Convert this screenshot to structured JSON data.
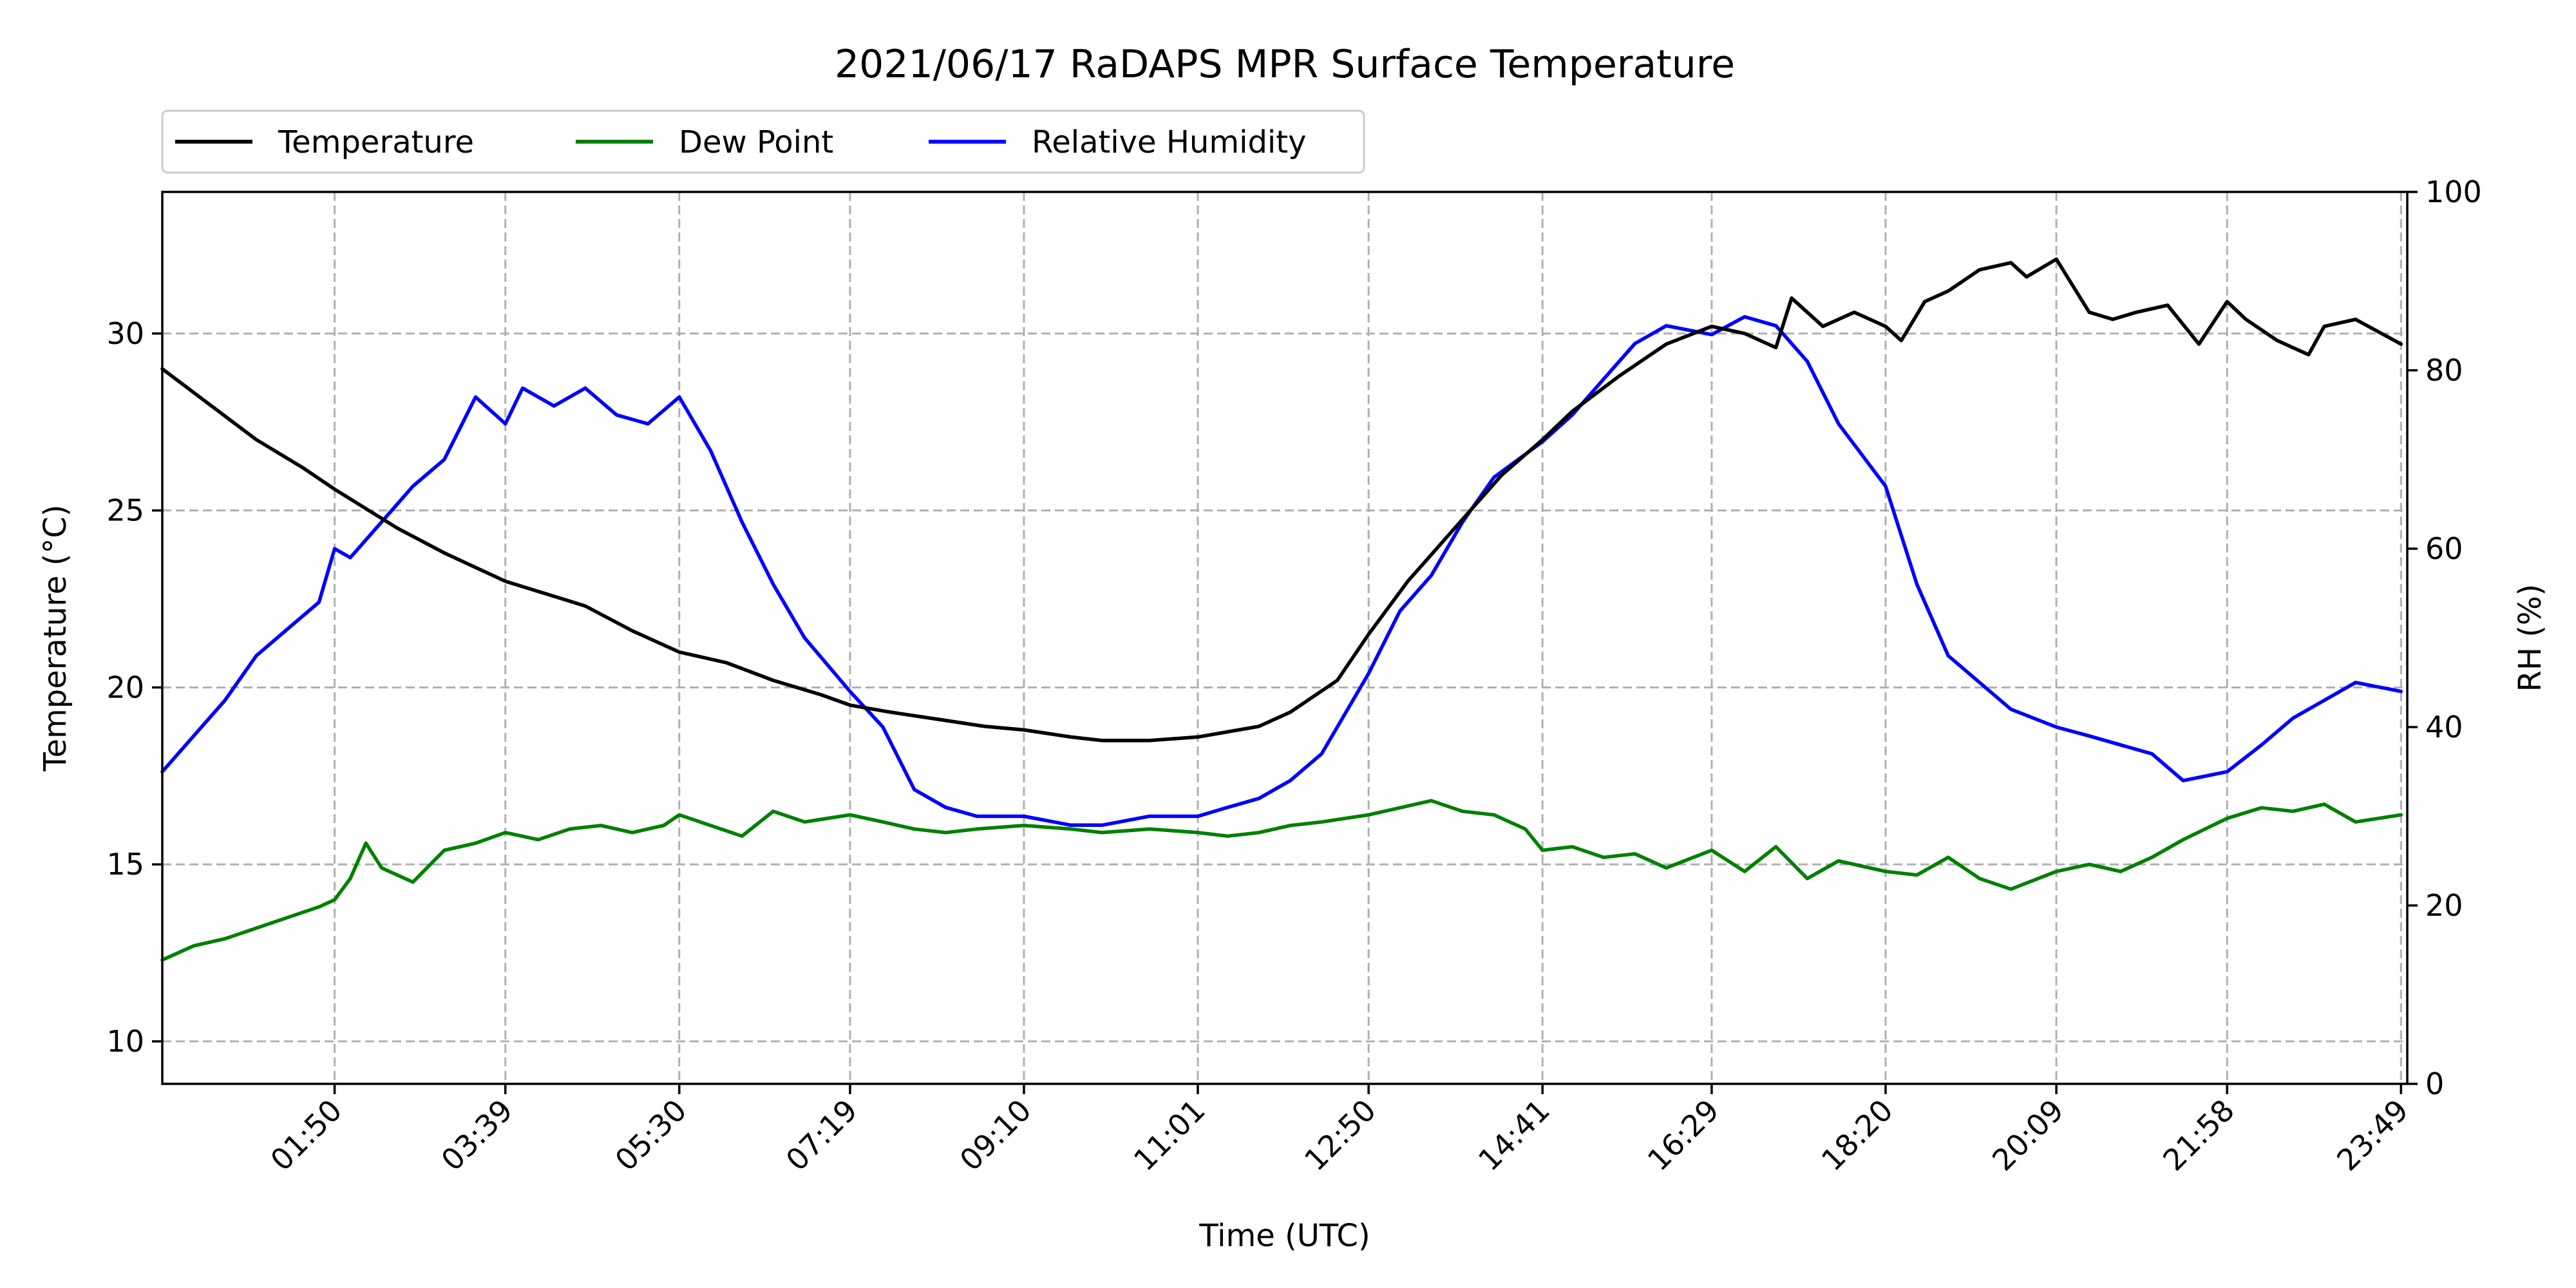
{
  "chart_data": {
    "type": "line",
    "title": "2021/06/17 RaDAPS MPR Surface Temperature",
    "xlabel": "Time (UTC)",
    "ylabel": "Temperature ($^\\circ$C)",
    "ylabel_display": "Temperature (°C)",
    "y2label": "RH (%)",
    "ylim": [
      8.8,
      34
    ],
    "y2lim": [
      0,
      100
    ],
    "xlim_minutes": [
      0,
      1433
    ],
    "x_ticks": [
      {
        "label": "01:50",
        "minutes": 110
      },
      {
        "label": "03:39",
        "minutes": 219
      },
      {
        "label": "05:30",
        "minutes": 330
      },
      {
        "label": "07:19",
        "minutes": 439
      },
      {
        "label": "09:10",
        "minutes": 550
      },
      {
        "label": "11:01",
        "minutes": 661
      },
      {
        "label": "12:50",
        "minutes": 770
      },
      {
        "label": "14:41",
        "minutes": 881
      },
      {
        "label": "16:29",
        "minutes": 989
      },
      {
        "label": "18:20",
        "minutes": 1100
      },
      {
        "label": "20:09",
        "minutes": 1209
      },
      {
        "label": "21:58",
        "minutes": 1318
      },
      {
        "label": "23:49",
        "minutes": 1429
      }
    ],
    "y_ticks": [
      "10",
      "15",
      "20",
      "25",
      "30"
    ],
    "y_tick_values": [
      10,
      15,
      20,
      25,
      30
    ],
    "y2_ticks": [
      "0",
      "20",
      "40",
      "60",
      "80",
      "100"
    ],
    "y2_tick_values": [
      0,
      20,
      40,
      60,
      80,
      100
    ],
    "grid": true,
    "legend": {
      "placement": "above-top-left",
      "columns": 3
    },
    "series": [
      {
        "name": "Temperature",
        "color": "#000000",
        "axis": "left",
        "x": [
          "00:00",
          "00:30",
          "01:00",
          "01:30",
          "01:50",
          "02:30",
          "03:00",
          "03:39",
          "04:30",
          "05:00",
          "05:30",
          "06:00",
          "06:30",
          "07:00",
          "07:19",
          "07:45",
          "08:15",
          "08:45",
          "09:10",
          "09:40",
          "10:00",
          "10:30",
          "11:01",
          "11:40",
          "12:00",
          "12:30",
          "12:50",
          "13:15",
          "13:45",
          "14:15",
          "14:41",
          "15:00",
          "15:30",
          "16:00",
          "16:29",
          "16:50",
          "17:10",
          "17:20",
          "17:40",
          "18:00",
          "18:20",
          "18:30",
          "18:45",
          "19:00",
          "19:20",
          "19:40",
          "19:50",
          "20:09",
          "20:30",
          "20:45",
          "21:00",
          "21:20",
          "21:40",
          "21:58",
          "22:10",
          "22:30",
          "22:50",
          "23:00",
          "23:20",
          "23:49"
        ],
        "y": [
          29.0,
          28.0,
          27.0,
          26.2,
          25.6,
          24.5,
          23.8,
          23.0,
          22.3,
          21.6,
          21.0,
          20.7,
          20.2,
          19.8,
          19.5,
          19.3,
          19.1,
          18.9,
          18.8,
          18.6,
          18.5,
          18.5,
          18.6,
          18.9,
          19.3,
          20.2,
          21.5,
          23.0,
          24.5,
          26.0,
          27.0,
          27.8,
          28.8,
          29.7,
          30.2,
          30.0,
          29.6,
          31.0,
          30.2,
          30.6,
          30.2,
          29.8,
          30.9,
          31.2,
          31.8,
          32.0,
          31.6,
          32.1,
          30.6,
          30.4,
          30.6,
          30.8,
          29.7,
          30.9,
          30.4,
          29.8,
          29.4,
          30.2,
          30.4,
          29.7
        ]
      },
      {
        "name": "Dew Point",
        "color": "#008000",
        "axis": "left",
        "x": [
          "00:00",
          "00:20",
          "00:40",
          "01:00",
          "01:20",
          "01:40",
          "01:50",
          "02:00",
          "02:10",
          "02:20",
          "02:40",
          "03:00",
          "03:20",
          "03:39",
          "04:00",
          "04:20",
          "04:40",
          "05:00",
          "05:20",
          "05:30",
          "05:50",
          "06:10",
          "06:30",
          "06:50",
          "07:19",
          "07:40",
          "08:00",
          "08:20",
          "08:40",
          "09:10",
          "09:40",
          "10:00",
          "10:30",
          "11:01",
          "11:20",
          "11:40",
          "12:00",
          "12:20",
          "12:50",
          "13:10",
          "13:30",
          "13:50",
          "14:10",
          "14:30",
          "14:41",
          "15:00",
          "15:20",
          "15:40",
          "16:00",
          "16:29",
          "16:50",
          "17:10",
          "17:30",
          "17:50",
          "18:20",
          "18:40",
          "19:00",
          "19:20",
          "19:40",
          "20:09",
          "20:30",
          "20:50",
          "21:10",
          "21:30",
          "21:58",
          "22:20",
          "22:40",
          "23:00",
          "23:20",
          "23:49"
        ],
        "y": [
          12.3,
          12.7,
          12.9,
          13.2,
          13.5,
          13.8,
          14.0,
          14.6,
          15.6,
          14.9,
          14.5,
          15.4,
          15.6,
          15.9,
          15.7,
          16.0,
          16.1,
          15.9,
          16.1,
          16.4,
          16.1,
          15.8,
          16.5,
          16.2,
          16.4,
          16.2,
          16.0,
          15.9,
          16.0,
          16.1,
          16.0,
          15.9,
          16.0,
          15.9,
          15.8,
          15.9,
          16.1,
          16.2,
          16.4,
          16.6,
          16.8,
          16.5,
          16.4,
          16.0,
          15.4,
          15.5,
          15.2,
          15.3,
          14.9,
          15.4,
          14.8,
          15.5,
          14.6,
          15.1,
          14.8,
          14.7,
          15.2,
          14.6,
          14.3,
          14.8,
          15.0,
          14.8,
          15.2,
          15.7,
          16.3,
          16.6,
          16.5,
          16.7,
          16.2,
          16.4
        ]
      },
      {
        "name": "Relative Humidity",
        "color": "#0000ff",
        "axis": "right",
        "x": [
          "00:00",
          "00:20",
          "00:40",
          "01:00",
          "01:20",
          "01:40",
          "01:50",
          "02:00",
          "02:20",
          "02:40",
          "03:00",
          "03:20",
          "03:39",
          "03:50",
          "04:10",
          "04:30",
          "04:50",
          "05:10",
          "05:30",
          "05:50",
          "06:10",
          "06:30",
          "06:50",
          "07:19",
          "07:40",
          "08:00",
          "08:20",
          "08:40",
          "09:10",
          "09:40",
          "10:00",
          "10:30",
          "11:01",
          "11:20",
          "11:40",
          "12:00",
          "12:20",
          "12:50",
          "13:10",
          "13:30",
          "13:50",
          "14:10",
          "14:41",
          "15:00",
          "15:20",
          "15:40",
          "16:00",
          "16:29",
          "16:50",
          "17:10",
          "17:30",
          "17:50",
          "18:20",
          "18:40",
          "19:00",
          "19:20",
          "19:40",
          "20:09",
          "20:30",
          "20:50",
          "21:10",
          "21:30",
          "21:58",
          "22:20",
          "22:40",
          "23:00",
          "23:20",
          "23:49"
        ],
        "y": [
          35,
          39,
          43,
          48,
          51,
          54,
          60,
          59,
          63,
          67,
          70,
          77,
          74,
          78,
          76,
          78,
          75,
          74,
          77,
          71,
          63,
          56,
          50,
          44,
          40,
          33,
          31,
          30,
          30,
          29,
          29,
          30,
          30,
          31,
          32,
          34,
          37,
          46,
          53,
          57,
          63,
          68,
          72,
          75,
          79,
          83,
          85,
          84,
          86,
          85,
          81,
          74,
          67,
          56,
          48,
          45,
          42,
          40,
          39,
          38,
          37,
          34,
          35,
          38,
          41,
          43,
          45,
          44
        ]
      }
    ]
  }
}
